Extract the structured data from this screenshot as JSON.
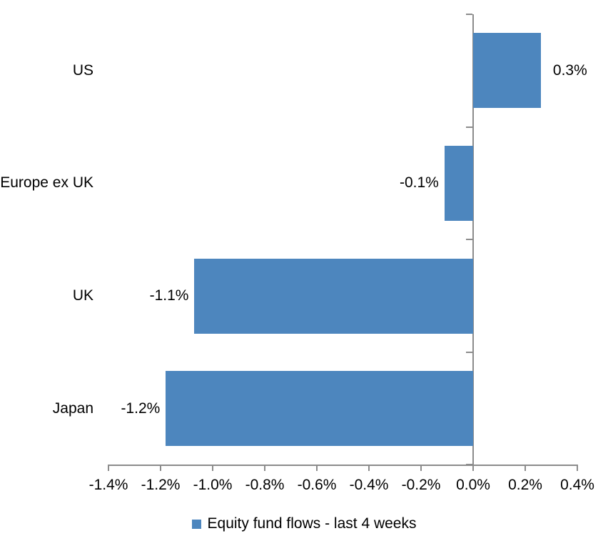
{
  "chart_data": {
    "type": "bar",
    "orientation": "horizontal",
    "title": "",
    "categories": [
      "US",
      "Europe ex UK",
      "UK",
      "Japan"
    ],
    "series": [
      {
        "name": "Equity fund flows - last 4 weeks",
        "values_pct": [
          0.26,
          -0.11,
          -1.07,
          -1.18
        ],
        "data_labels": [
          "0.3%",
          "-0.1%",
          "-1.1%",
          "-1.2%"
        ]
      }
    ],
    "value_unit": "%",
    "xlim": [
      -1.4,
      0.4
    ],
    "x_tick_values": [
      -1.4,
      -1.2,
      -1.0,
      -0.8,
      -0.6,
      -0.4,
      -0.2,
      0.0,
      0.2,
      0.4
    ],
    "x_tick_labels": [
      "-1.4%",
      "-1.2%",
      "-1.0%",
      "-0.8%",
      "-0.6%",
      "-0.4%",
      "-0.2%",
      "0.0%",
      "0.2%",
      "0.4%"
    ],
    "grid": false,
    "legend_position": "bottom-center",
    "colors": {
      "bar": "#4D86BE",
      "axis": "#8C8C8C",
      "text": "#000000",
      "background": "#FFFFFF"
    }
  }
}
